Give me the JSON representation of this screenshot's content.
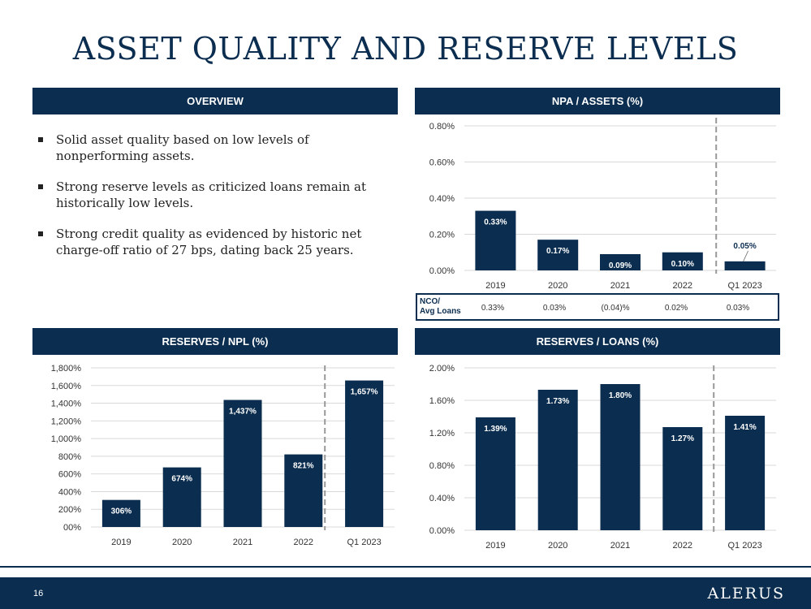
{
  "page": {
    "title": "ASSET QUALITY AND RESERVE LEVELS",
    "page_number": "16",
    "logo_text": "ALERUS"
  },
  "overview": {
    "header": "OVERVIEW",
    "bullets": [
      "Solid asset quality based on low levels of nonperforming assets.",
      "Strong reserve levels as criticized loans remain at historically low levels.",
      "Strong credit quality as evidenced by historic net charge-off ratio of 27 bps, dating back 25 years."
    ]
  },
  "nco": {
    "label_line1": "NCO/",
    "label_line2": "Avg Loans",
    "values": [
      "0.33%",
      "0.03%",
      "(0.04)%",
      "0.02%",
      "0.03%"
    ]
  },
  "colors": {
    "bar": "#0b2d4f",
    "header": "#0b2d4f",
    "divider": "#999999",
    "grid": "#d9d9d9"
  },
  "chart_data": [
    {
      "id": "npa",
      "type": "bar",
      "title": "NPA / ASSETS (%)",
      "categories": [
        "2019",
        "2020",
        "2021",
        "2022",
        "Q1 2023"
      ],
      "values": [
        0.33,
        0.17,
        0.09,
        0.1,
        0.05
      ],
      "data_labels": [
        "0.33%",
        "0.17%",
        "0.09%",
        "0.10%",
        "0.05%"
      ],
      "ylim": [
        0,
        0.8
      ],
      "yticks": [
        0,
        0.2,
        0.4,
        0.6,
        0.8
      ],
      "ytick_labels": [
        "0.00%",
        "0.20%",
        "0.40%",
        "0.60%",
        "0.80%"
      ],
      "grid": true,
      "divider_before_last": true
    },
    {
      "id": "npl",
      "type": "bar",
      "title": "RESERVES / NPL (%)",
      "categories": [
        "2019",
        "2020",
        "2021",
        "2022",
        "Q1 2023"
      ],
      "values": [
        306,
        674,
        1437,
        821,
        1657
      ],
      "data_labels": [
        "306%",
        "674%",
        "1,437%",
        "821%",
        "1,657%"
      ],
      "ylim": [
        0,
        1800
      ],
      "yticks": [
        0,
        200,
        400,
        600,
        800,
        1000,
        1200,
        1400,
        1600,
        1800
      ],
      "ytick_labels": [
        "00%",
        "200%",
        "400%",
        "600%",
        "800%",
        "1,000%",
        "1,200%",
        "1,400%",
        "1,600%",
        "1,800%"
      ],
      "grid": true,
      "divider_before_last": true
    },
    {
      "id": "loans",
      "type": "bar",
      "title": "RESERVES / LOANS (%)",
      "categories": [
        "2019",
        "2020",
        "2021",
        "2022",
        "Q1 2023"
      ],
      "values": [
        1.39,
        1.73,
        1.8,
        1.27,
        1.41
      ],
      "data_labels": [
        "1.39%",
        "1.73%",
        "1.80%",
        "1.27%",
        "1.41%"
      ],
      "ylim": [
        0,
        2.0
      ],
      "yticks": [
        0,
        0.4,
        0.8,
        1.2,
        1.6,
        2.0
      ],
      "ytick_labels": [
        "0.00%",
        "0.40%",
        "0.80%",
        "1.20%",
        "1.60%",
        "2.00%"
      ],
      "grid": true,
      "divider_before_last": true
    }
  ]
}
